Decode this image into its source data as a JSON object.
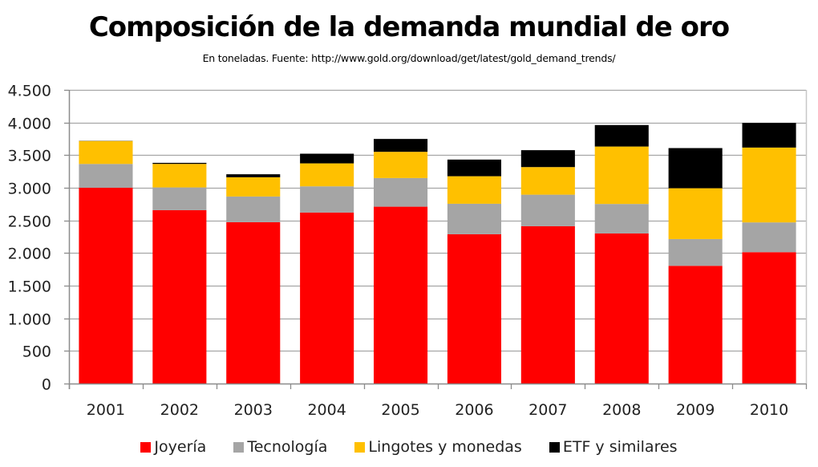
{
  "chart_data": {
    "type": "bar",
    "stacked": true,
    "title": "Composición de la demanda mundial de oro",
    "subtitle": "En toneladas. Fuente: http://www.gold.org/download/get/latest/gold_demand_trends/",
    "xlabel": "",
    "ylabel": "",
    "ylim": [
      0,
      4500
    ],
    "yticks": [
      0,
      500,
      1000,
      1500,
      2000,
      2500,
      3000,
      3500,
      4000,
      4500
    ],
    "ytick_labels": [
      "0",
      "500",
      "1.000",
      "1.500",
      "2.000",
      "2.500",
      "3.000",
      "3.500",
      "4.000",
      "4.500"
    ],
    "grid": true,
    "legend_position": "bottom",
    "categories": [
      "2001",
      "2002",
      "2003",
      "2004",
      "2005",
      "2006",
      "2007",
      "2008",
      "2009",
      "2010"
    ],
    "series": [
      {
        "name": "Joyería",
        "color": "#ff0000",
        "values": [
          3000,
          2657,
          2472,
          2620,
          2710,
          2288,
          2411,
          2300,
          1804,
          2013
        ]
      },
      {
        "name": "Tecnología",
        "color": "#a5a5a5",
        "values": [
          365,
          348,
          394,
          402,
          439,
          467,
          483,
          452,
          410,
          456
        ]
      },
      {
        "name": "Lingotes y monedas",
        "color": "#ffc000",
        "values": [
          352,
          361,
          295,
          352,
          402,
          422,
          423,
          880,
          779,
          1147
        ]
      },
      {
        "name": "ETF y similares",
        "color": "#000000",
        "values": [
          3,
          16,
          46,
          148,
          197,
          255,
          259,
          329,
          615,
          378
        ]
      }
    ]
  }
}
